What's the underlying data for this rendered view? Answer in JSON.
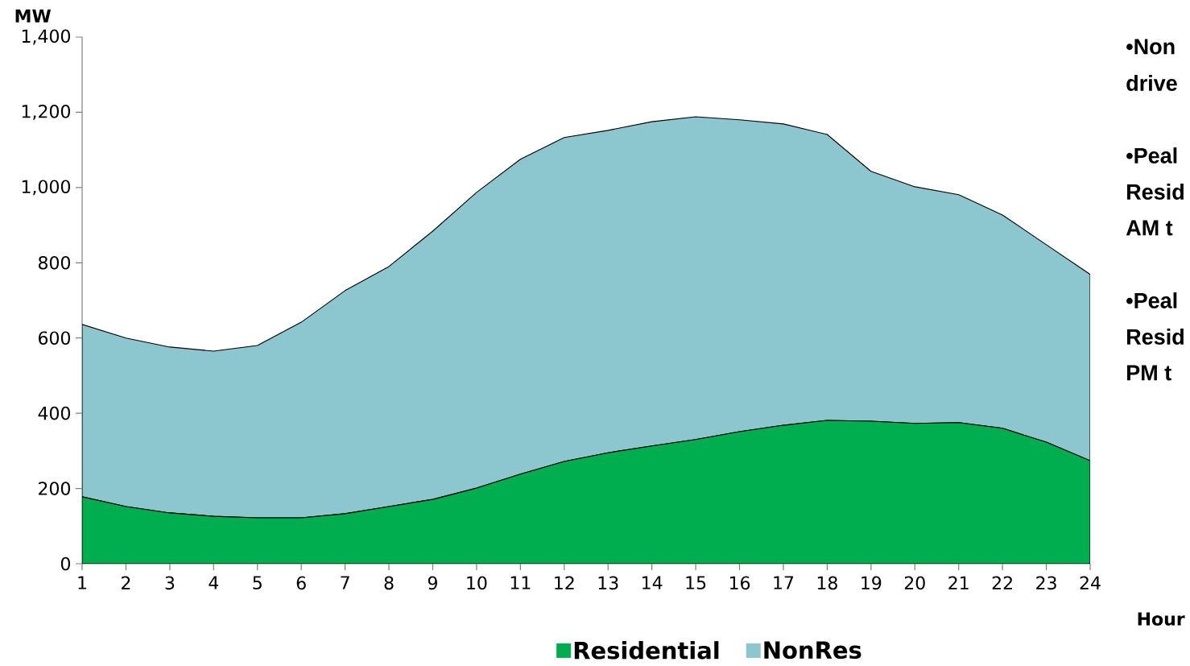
{
  "chart_data": {
    "type": "area",
    "stacked": true,
    "ylabel": "MW",
    "xlabel": "Hour",
    "x": [
      1,
      2,
      3,
      4,
      5,
      6,
      7,
      8,
      9,
      10,
      11,
      12,
      13,
      14,
      15,
      16,
      17,
      18,
      19,
      20,
      21,
      22,
      23,
      24
    ],
    "series": [
      {
        "name": "Residential",
        "color": "#00ae4f",
        "values": [
          178,
          152,
          135,
          126,
          122,
          122,
          133,
          152,
          171,
          201,
          238,
          272,
          295,
          313,
          330,
          351,
          368,
          381,
          379,
          373,
          375,
          360,
          323,
          274
        ]
      },
      {
        "name": "NonRes",
        "color": "#8cc6cf",
        "values": [
          458,
          448,
          441,
          439,
          458,
          520,
          593,
          638,
          713,
          786,
          837,
          861,
          857,
          862,
          858,
          829,
          801,
          760,
          664,
          629,
          606,
          567,
          525,
          495
        ]
      }
    ],
    "xlim": [
      1,
      24
    ],
    "xticks": [
      1,
      2,
      3,
      4,
      5,
      6,
      7,
      8,
      9,
      10,
      11,
      12,
      13,
      14,
      15,
      16,
      17,
      18,
      19,
      20,
      21,
      22,
      23,
      24
    ],
    "ylim": [
      0,
      1400
    ],
    "yticks": [
      0,
      200,
      400,
      600,
      800,
      {
        "value": 1000,
        "label": "1,000"
      },
      {
        "value": 1200,
        "label": "1,200"
      },
      {
        "value": 1400,
        "label": "1,400"
      }
    ],
    "legend": "bottom",
    "grid": false,
    "annotations": [
      "•Non",
      "drive",
      "•Peal",
      "Resid",
      "AM t",
      "•Peal",
      "Resid",
      "PM t"
    ]
  }
}
